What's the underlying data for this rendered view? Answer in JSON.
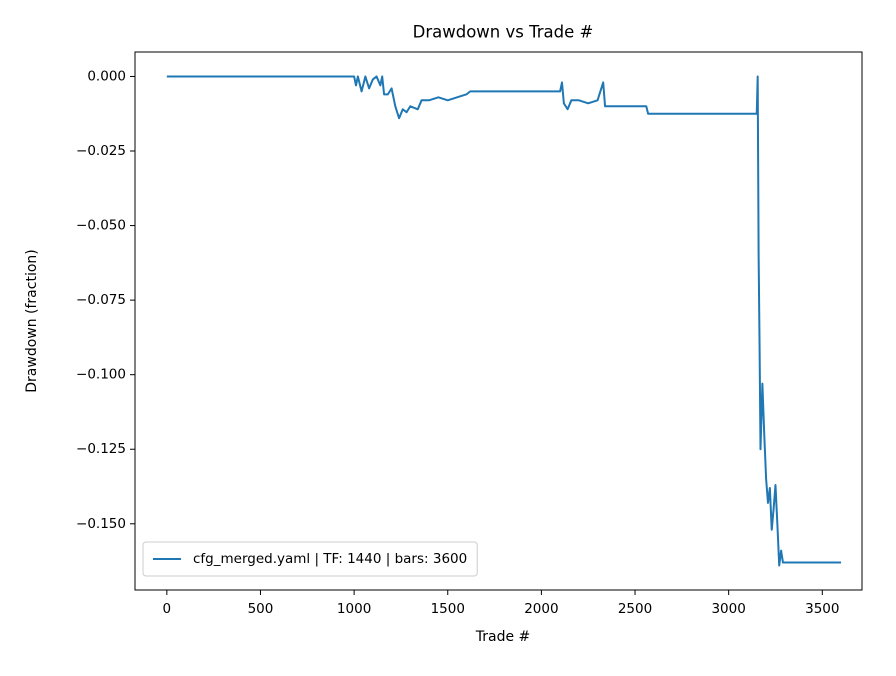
{
  "chart_data": {
    "type": "line",
    "title": "Drawdown vs Trade #",
    "xlabel": "Trade #",
    "ylabel": "Drawdown (fraction)",
    "x": [
      0,
      1000,
      1010,
      1020,
      1040,
      1060,
      1080,
      1100,
      1120,
      1140,
      1150,
      1160,
      1180,
      1200,
      1220,
      1240,
      1260,
      1280,
      1300,
      1340,
      1360,
      1400,
      1450,
      1500,
      1550,
      1600,
      1620,
      2100,
      2110,
      2120,
      2140,
      2160,
      2200,
      2250,
      2300,
      2320,
      2330,
      2340,
      2560,
      2570,
      3150,
      3155,
      3160,
      3165,
      3170,
      3180,
      3190,
      3200,
      3210,
      3220,
      3230,
      3240,
      3250,
      3260,
      3270,
      3280,
      3290,
      3600
    ],
    "series": [
      {
        "name": "cfg_merged.yaml | TF: 1440 | bars: 3600",
        "color": "#1f77b4",
        "values": [
          0,
          0,
          -0.003,
          0,
          -0.005,
          0,
          -0.004,
          -0.001,
          0,
          -0.003,
          0,
          -0.006,
          -0.006,
          -0.004,
          -0.01,
          -0.014,
          -0.011,
          -0.012,
          -0.01,
          -0.011,
          -0.008,
          -0.008,
          -0.007,
          -0.008,
          -0.007,
          -0.006,
          -0.005,
          -0.005,
          -0.002,
          -0.009,
          -0.011,
          -0.008,
          -0.008,
          -0.009,
          -0.008,
          -0.004,
          -0.002,
          -0.01,
          -0.01,
          -0.0125,
          -0.0125,
          0,
          -0.06,
          -0.09,
          -0.125,
          -0.103,
          -0.12,
          -0.135,
          -0.143,
          -0.138,
          -0.152,
          -0.145,
          -0.137,
          -0.15,
          -0.164,
          -0.159,
          -0.163,
          -0.163
        ]
      }
    ],
    "xlim": [
      -170,
      3712
    ],
    "xticks": [
      0,
      500,
      1000,
      1500,
      2000,
      2500,
      3000,
      3500
    ],
    "ylim": [
      -0.1722,
      0.0082
    ],
    "yticks": [
      {
        "value": 0,
        "label": "0.000"
      },
      {
        "value": -0.025,
        "label": "−0.025"
      },
      {
        "value": -0.05,
        "label": "−0.050"
      },
      {
        "value": -0.075,
        "label": "−0.075"
      },
      {
        "value": -0.1,
        "label": "−0.100"
      },
      {
        "value": -0.125,
        "label": "−0.125"
      },
      {
        "value": -0.15,
        "label": "−0.150"
      }
    ],
    "legend": "lower left"
  }
}
